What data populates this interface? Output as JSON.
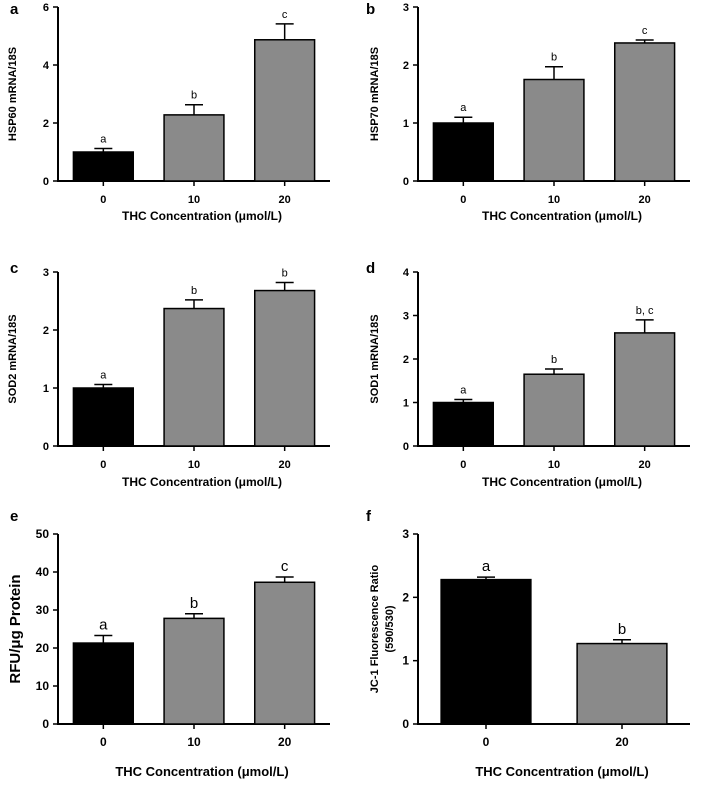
{
  "chart_data": [
    {
      "panel": "a",
      "type": "bar",
      "categories": [
        "0",
        "10",
        "20"
      ],
      "values": [
        1.0,
        2.28,
        4.87
      ],
      "errors": [
        0.12,
        0.35,
        0.55
      ],
      "letters": [
        "a",
        "b",
        "c"
      ],
      "colors": [
        "#000000",
        "#8a8a8a",
        "#8a8a8a"
      ],
      "ylabel": "HSP60 mRNA/18S",
      "xlabel": "THC Concentration (μmol/L)",
      "ylim": [
        0,
        6
      ],
      "yticks": [
        0,
        2,
        4,
        6
      ]
    },
    {
      "panel": "b",
      "type": "bar",
      "categories": [
        "0",
        "10",
        "20"
      ],
      "values": [
        1.0,
        1.75,
        2.38
      ],
      "errors": [
        0.1,
        0.22,
        0.05
      ],
      "letters": [
        "a",
        "b",
        "c"
      ],
      "colors": [
        "#000000",
        "#8a8a8a",
        "#8a8a8a"
      ],
      "ylabel": "HSP70 mRNA/18S",
      "xlabel": "THC Concentration (μmol/L)",
      "ylim": [
        0,
        3
      ],
      "yticks": [
        0,
        1,
        2,
        3
      ]
    },
    {
      "panel": "c",
      "type": "bar",
      "categories": [
        "0",
        "10",
        "20"
      ],
      "values": [
        1.0,
        2.37,
        2.68
      ],
      "errors": [
        0.06,
        0.15,
        0.14
      ],
      "letters": [
        "a",
        "b",
        "b"
      ],
      "colors": [
        "#000000",
        "#8a8a8a",
        "#8a8a8a"
      ],
      "ylabel": "SOD2 mRNA/18S",
      "xlabel": "THC Concentration (μmol/L)",
      "ylim": [
        0,
        3
      ],
      "yticks": [
        0,
        1,
        2,
        3
      ]
    },
    {
      "panel": "d",
      "type": "bar",
      "categories": [
        "0",
        "10",
        "20"
      ],
      "values": [
        1.0,
        1.65,
        2.6
      ],
      "errors": [
        0.07,
        0.12,
        0.3
      ],
      "letters": [
        "a",
        "b",
        "b, c"
      ],
      "colors": [
        "#000000",
        "#8a8a8a",
        "#8a8a8a"
      ],
      "ylabel": "SOD1 mRNA/18S",
      "xlabel": "THC Concentration (μmol/L)",
      "ylim": [
        0,
        4
      ],
      "yticks": [
        0,
        1,
        2,
        3,
        4
      ]
    },
    {
      "panel": "e",
      "type": "bar",
      "categories": [
        "0",
        "10",
        "20"
      ],
      "values": [
        21.3,
        27.8,
        37.3
      ],
      "errors": [
        2.0,
        1.2,
        1.4
      ],
      "letters": [
        "a",
        "b",
        "c"
      ],
      "colors": [
        "#000000",
        "#8a8a8a",
        "#8a8a8a"
      ],
      "ylabel": "RFU/μg Protein",
      "xlabel": "THC Concentration (μmol/L)",
      "ylim": [
        0,
        50
      ],
      "yticks": [
        0,
        10,
        20,
        30,
        40,
        50
      ]
    },
    {
      "panel": "f",
      "type": "bar",
      "categories": [
        "0",
        "20"
      ],
      "values": [
        2.28,
        1.27
      ],
      "errors": [
        0.04,
        0.06
      ],
      "letters": [
        "a",
        "b"
      ],
      "colors": [
        "#000000",
        "#8a8a8a"
      ],
      "ylabel": "JC-1 Fluorescence Ratio",
      "ylabel2": "(590/530)",
      "xlabel": "THC Concentration (μmol/L)",
      "ylim": [
        0,
        3
      ],
      "yticks": [
        0,
        1,
        2,
        3
      ]
    }
  ]
}
